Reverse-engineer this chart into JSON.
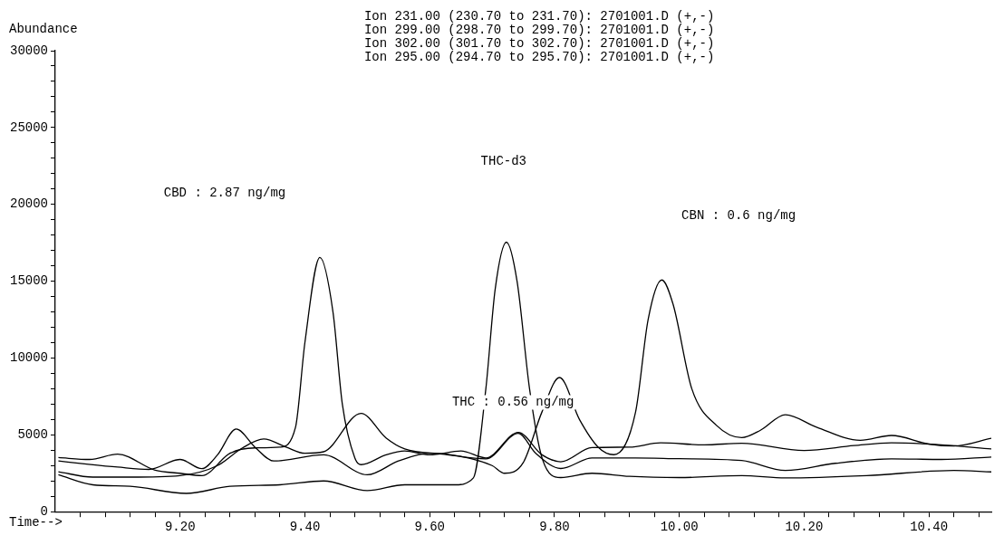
{
  "chart_data": {
    "type": "line",
    "xlabel": "Time-->",
    "ylabel": "Abundance",
    "annotations": [
      "Ion 231.00 (230.70 to 231.70): 2701001.D (+,-)",
      "Ion 299.00 (298.70 to 299.70): 2701001.D (+,-)",
      "Ion 302.00 (301.70 to 302.70): 2701001.D (+,-)",
      "Ion 295.00 (294.70 to 295.70): 2701001.D (+,-)",
      "CBD : 2.87 ng/mg",
      "THC-d3",
      "CBN : 0.6 ng/mg",
      "THC : 0.56 ng/mg"
    ],
    "xlim": [
      9.0,
      10.5
    ],
    "ylim": [
      0,
      30000
    ],
    "xticks": [
      {
        "value": 9.04,
        "label": null
      },
      {
        "value": 9.08,
        "label": null
      },
      {
        "value": 9.12,
        "label": null
      },
      {
        "value": 9.16,
        "label": null
      },
      {
        "value": 9.2,
        "label": "9.20"
      },
      {
        "value": 9.24,
        "label": null
      },
      {
        "value": 9.28,
        "label": null
      },
      {
        "value": 9.32,
        "label": null
      },
      {
        "value": 9.36,
        "label": null
      },
      {
        "value": 9.4,
        "label": "9.40"
      },
      {
        "value": 9.44,
        "label": null
      },
      {
        "value": 9.48,
        "label": null
      },
      {
        "value": 9.52,
        "label": null
      },
      {
        "value": 9.56,
        "label": null
      },
      {
        "value": 9.6,
        "label": "9.60"
      },
      {
        "value": 9.64,
        "label": null
      },
      {
        "value": 9.68,
        "label": null
      },
      {
        "value": 9.72,
        "label": null
      },
      {
        "value": 9.76,
        "label": null
      },
      {
        "value": 9.8,
        "label": "9.80"
      },
      {
        "value": 9.84,
        "label": null
      },
      {
        "value": 9.88,
        "label": null
      },
      {
        "value": 9.92,
        "label": null
      },
      {
        "value": 9.96,
        "label": null
      },
      {
        "value": 10.0,
        "label": "10.00"
      },
      {
        "value": 10.04,
        "label": null
      },
      {
        "value": 10.08,
        "label": null
      },
      {
        "value": 10.12,
        "label": null
      },
      {
        "value": 10.16,
        "label": null
      },
      {
        "value": 10.2,
        "label": "10.20"
      },
      {
        "value": 10.24,
        "label": null
      },
      {
        "value": 10.28,
        "label": null
      },
      {
        "value": 10.32,
        "label": null
      },
      {
        "value": 10.36,
        "label": null
      },
      {
        "value": 10.4,
        "label": "10.40"
      },
      {
        "value": 10.44,
        "label": null
      },
      {
        "value": 10.48,
        "label": null
      }
    ],
    "yticks": [
      0,
      {
        "value": 1000,
        "label": null
      },
      {
        "value": 2000,
        "label": null
      },
      {
        "value": 3000,
        "label": null
      },
      {
        "value": 4000,
        "label": null
      },
      5000,
      {
        "value": 6000,
        "label": null
      },
      {
        "value": 7000,
        "label": null
      },
      {
        "value": 8000,
        "label": null
      },
      {
        "value": 9000,
        "label": null
      },
      10000,
      {
        "value": 11000,
        "label": null
      },
      {
        "value": 12000,
        "label": null
      },
      {
        "value": 13000,
        "label": null
      },
      {
        "value": 14000,
        "label": null
      },
      15000,
      {
        "value": 16000,
        "label": null
      },
      {
        "value": 17000,
        "label": null
      },
      {
        "value": 18000,
        "label": null
      },
      {
        "value": 19000,
        "label": null
      },
      20000,
      {
        "value": 21000,
        "label": null
      },
      {
        "value": 22000,
        "label": null
      },
      {
        "value": 23000,
        "label": null
      },
      {
        "value": 24000,
        "label": null
      },
      25000,
      {
        "value": 26000,
        "label": null
      },
      {
        "value": 27000,
        "label": null
      },
      {
        "value": 28000,
        "label": null
      },
      {
        "value": 29000,
        "label": null
      },
      30000
    ],
    "grid": false,
    "legend": false,
    "marker": "none",
    "series": [
      {
        "color": "#000000",
        "x": [
          9.005,
          9.055,
          9.1,
          9.16,
          9.2,
          9.235,
          9.28,
          9.32,
          9.36,
          9.385,
          9.4,
          9.424,
          9.445,
          9.46,
          9.48,
          9.49,
          9.53,
          9.56,
          9.6,
          9.65,
          9.69,
          9.742,
          9.78,
          9.81,
          9.86,
          9.92,
          9.97,
          10.04,
          10.1,
          10.2,
          10.28,
          10.34,
          10.42,
          10.5
        ],
        "values": [
          3520,
          3400,
          3740,
          2700,
          2500,
          2350,
          3800,
          4150,
          4200,
          5500,
          11000,
          16540,
          13000,
          7000,
          3500,
          3060,
          3700,
          3950,
          3700,
          3950,
          3500,
          5160,
          3700,
          3250,
          4170,
          4200,
          4480,
          4350,
          4450,
          3980,
          4300,
          4480,
          4350,
          4080
        ]
      },
      {
        "color": "#000000",
        "x": [
          9.005,
          9.06,
          9.12,
          9.2,
          9.26,
          9.3,
          9.334,
          9.37,
          9.4,
          9.43,
          9.49,
          9.53,
          9.56,
          9.62,
          9.69,
          9.742,
          9.77,
          9.81,
          9.86,
          9.93,
          10.0,
          10.1,
          10.17,
          10.25,
          10.34,
          10.42,
          10.5
        ],
        "values": [
          2600,
          2250,
          2250,
          2350,
          3000,
          4150,
          4730,
          4200,
          3800,
          3900,
          6400,
          4800,
          4080,
          3750,
          3440,
          5100,
          3800,
          2810,
          3490,
          3500,
          3450,
          3330,
          2680,
          3150,
          3440,
          3400,
          3560
        ]
      },
      {
        "color": "#000000",
        "x": [
          9.005,
          9.05,
          9.1,
          9.15,
          9.2,
          9.235,
          9.26,
          9.29,
          9.32,
          9.35,
          9.43,
          9.5,
          9.55,
          9.6,
          9.65,
          9.7,
          9.72,
          9.75,
          9.78,
          9.808,
          9.84,
          9.87,
          9.895,
          9.93,
          9.95,
          9.972,
          9.99,
          10.02,
          10.06,
          10.1,
          10.13,
          10.17,
          10.22,
          10.29,
          10.34,
          10.4,
          10.44,
          10.5
        ],
        "values": [
          3300,
          3100,
          2900,
          2750,
          3400,
          2800,
          3700,
          5380,
          4200,
          3300,
          3700,
          2400,
          3300,
          3800,
          3600,
          3000,
          2500,
          3200,
          6500,
          8730,
          6000,
          4200,
          3710,
          6500,
          12500,
          15080,
          13500,
          8000,
          5600,
          4820,
          5300,
          6310,
          5500,
          4640,
          4960,
          4400,
          4270,
          4780
        ]
      },
      {
        "color": "#000000",
        "x": [
          9.005,
          9.06,
          9.12,
          9.21,
          9.28,
          9.36,
          9.43,
          9.5,
          9.56,
          9.64,
          9.67,
          9.69,
          9.705,
          9.723,
          9.74,
          9.76,
          9.78,
          9.81,
          9.86,
          9.92,
          10.0,
          10.1,
          10.17,
          10.3,
          10.44,
          10.5
        ],
        "values": [
          2400,
          1750,
          1650,
          1190,
          1650,
          1750,
          2000,
          1370,
          1750,
          1750,
          2200,
          8000,
          14500,
          17540,
          15000,
          8000,
          3500,
          2220,
          2500,
          2300,
          2220,
          2350,
          2200,
          2350,
          2680,
          2590
        ]
      }
    ]
  }
}
